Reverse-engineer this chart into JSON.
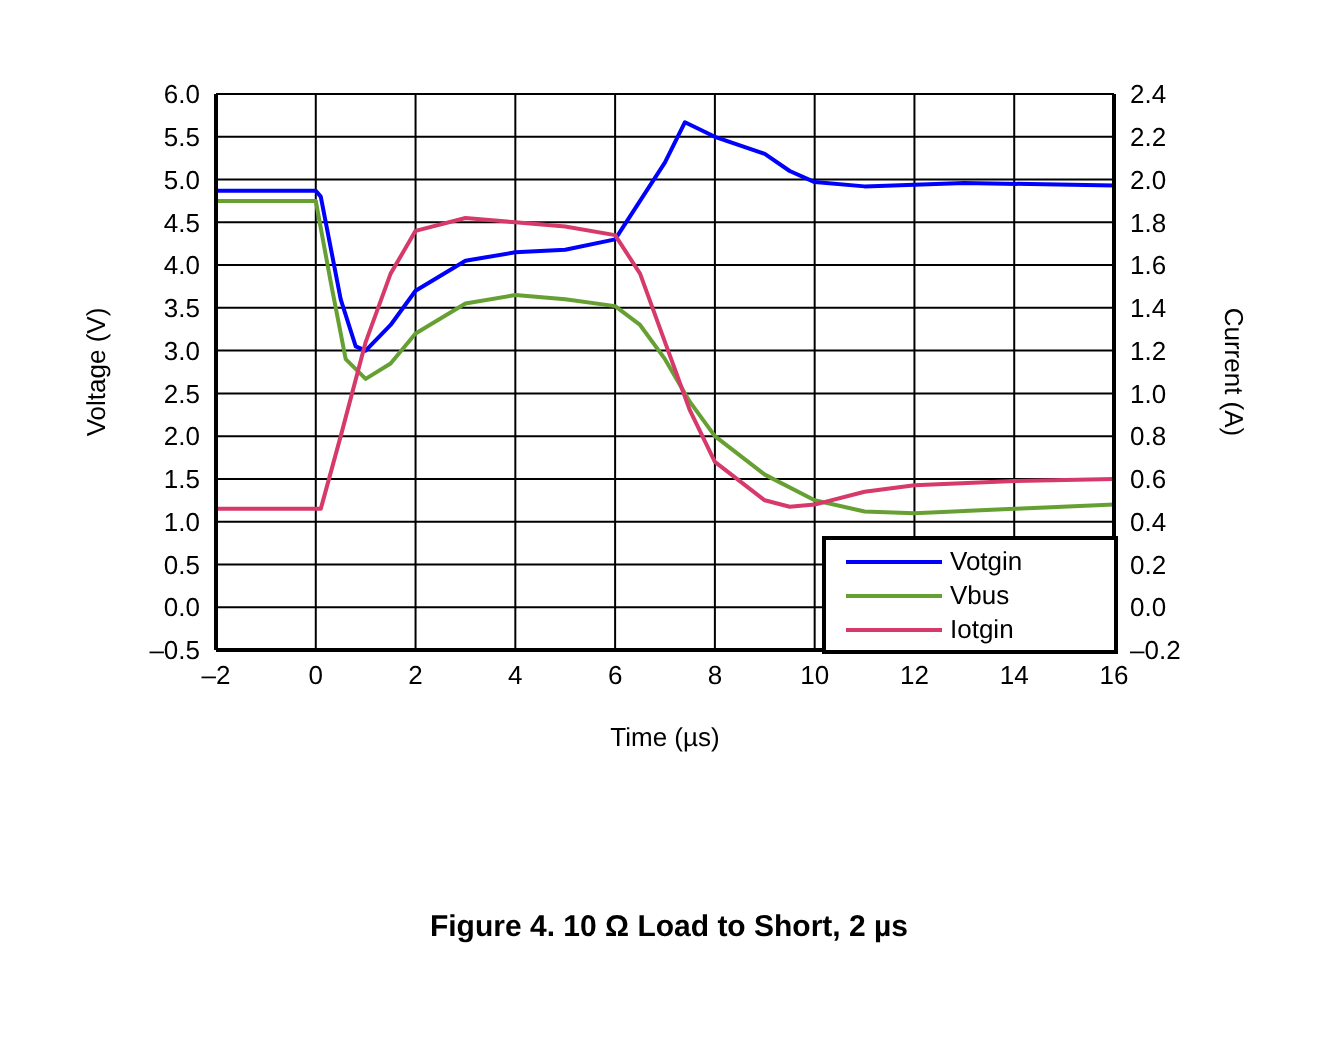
{
  "chart_data": {
    "type": "line",
    "title": "Figure 4. 10 Ω Load to Short, 2 µs",
    "xlabel": "Time (µs)",
    "ylabel": "Voltage (V)",
    "y2label": "Current (A)",
    "xlim": [
      -2,
      16
    ],
    "xticks": [
      {
        "value": -2,
        "label": "–2"
      },
      0,
      2,
      4,
      6,
      8,
      10,
      12,
      14,
      16
    ],
    "ylim": [
      -0.5,
      6
    ],
    "yticks": [
      {
        "value": -0.5,
        "label": "–0.5"
      },
      "0.0",
      0.5,
      "1.0",
      1.5,
      "2.0",
      2.5,
      "3.0",
      3.5,
      "4.0",
      4.5,
      "5.0",
      5.5,
      "6.0"
    ],
    "y2lim": [
      -0.2,
      2.4
    ],
    "y2ticks": [
      {
        "value": -0.2,
        "label": "–0.2"
      },
      "0.0",
      0.2,
      0.4,
      0.6,
      0.8,
      "1.0",
      1.2,
      1.4,
      1.6,
      1.8,
      "2.0",
      2.2,
      2.4
    ],
    "grid": true,
    "legend": "bottom right",
    "marker": "none",
    "line_style": "solid",
    "series": [
      {
        "name": "Votgin",
        "color": "#0000ff",
        "x": [
          -2,
          0,
          0.1,
          0.5,
          0.8,
          1,
          1.5,
          2,
          3,
          4,
          5,
          6,
          6.5,
          7,
          7.4,
          8,
          9,
          9.5,
          10,
          11,
          13,
          16
        ],
        "values": [
          4.87,
          4.87,
          4.8,
          3.6,
          3.05,
          3,
          3.3,
          3.7,
          4.05,
          4.15,
          4.18,
          4.3,
          4.75,
          5.2,
          5.67,
          5.5,
          5.3,
          5.1,
          4.97,
          4.92,
          4.96,
          4.93
        ]
      },
      {
        "name": "Vbus",
        "color": "#66a033",
        "x": [
          -2,
          0,
          0.3,
          0.6,
          1,
          1.5,
          2,
          3,
          4,
          5,
          6,
          6.5,
          7,
          7.5,
          8,
          9,
          10,
          11,
          12,
          14,
          16
        ],
        "values": [
          4.75,
          4.75,
          3.8,
          2.9,
          2.67,
          2.85,
          3.2,
          3.55,
          3.65,
          3.6,
          3.52,
          3.3,
          2.9,
          2.4,
          2,
          1.55,
          1.25,
          1.12,
          1.1,
          1.15,
          1.2
        ]
      },
      {
        "name": "Iotgin",
        "color": "#d63a6a",
        "axis": "y2",
        "x": [
          -2,
          0.1,
          0.5,
          1,
          1.5,
          2,
          3,
          4,
          5,
          6,
          6.5,
          7,
          7.5,
          8,
          9,
          9.5,
          10,
          11,
          12,
          14,
          16
        ],
        "values": [
          0.46,
          0.46,
          0.8,
          1.24,
          1.56,
          1.76,
          1.82,
          1.8,
          1.78,
          1.74,
          1.56,
          1.24,
          0.92,
          0.68,
          0.5,
          0.47,
          0.48,
          0.54,
          0.57,
          0.59,
          0.6
        ]
      }
    ]
  }
}
